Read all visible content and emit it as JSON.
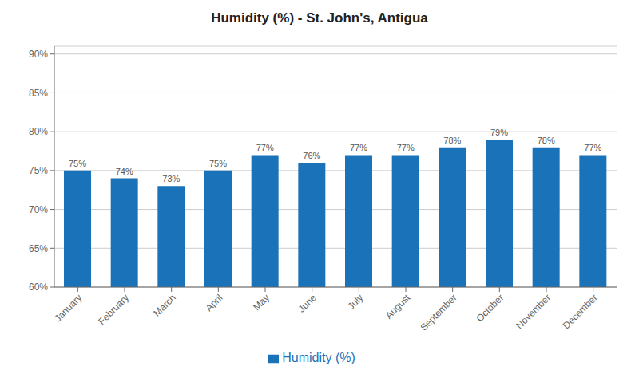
{
  "chart_data": {
    "type": "bar",
    "title": "Humidity (%) - St. John's, Antigua",
    "categories": [
      "January",
      "February",
      "March",
      "April",
      "May",
      "June",
      "July",
      "August",
      "September",
      "October",
      "November",
      "December"
    ],
    "series": [
      {
        "name": "Humidity (%)",
        "color": "#1a72b8",
        "values": [
          75,
          74,
          73,
          75,
          77,
          76,
          77,
          77,
          78,
          79,
          78,
          77
        ],
        "value_labels": [
          "75%",
          "74%",
          "73%",
          "75%",
          "77%",
          "76%",
          "77%",
          "77%",
          "78%",
          "79%",
          "78%",
          "77%"
        ]
      }
    ],
    "ylim": [
      60,
      91
    ],
    "yticks": [
      {
        "value": 60,
        "label": "60%"
      },
      {
        "value": 65,
        "label": "65%"
      },
      {
        "value": 70,
        "label": "70%"
      },
      {
        "value": 75,
        "label": "75%"
      },
      {
        "value": 80,
        "label": "80%"
      },
      {
        "value": 85,
        "label": "85%"
      },
      {
        "value": 90,
        "label": "90%"
      }
    ],
    "grid": true,
    "data_labels": true,
    "legend": "bottom"
  }
}
